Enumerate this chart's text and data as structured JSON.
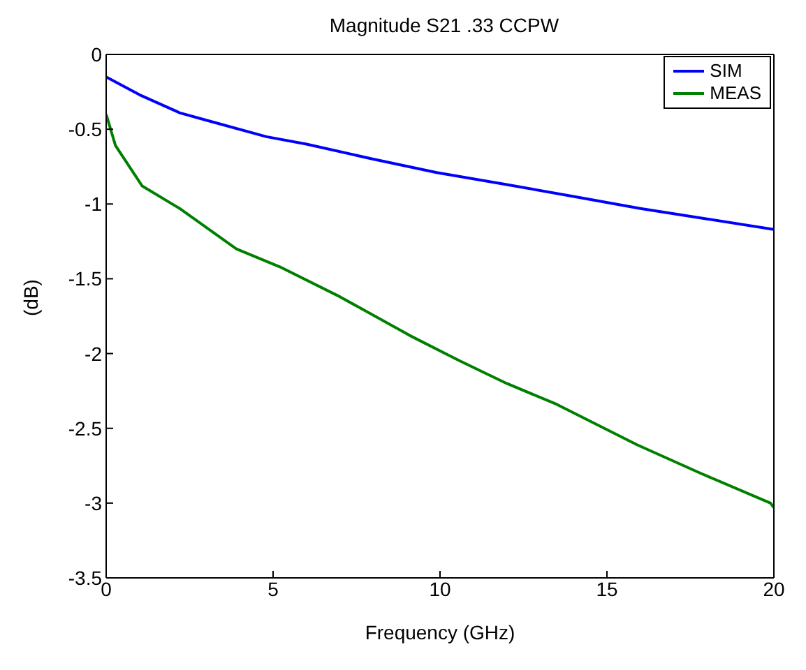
{
  "chart_data": {
    "type": "line",
    "title": "Magnitude S21 .33 CCPW",
    "xlabel": "Frequency (GHz)",
    "ylabel": "(dB)",
    "xlim": [
      0,
      20
    ],
    "xticks": [
      0,
      5,
      10,
      15,
      20
    ],
    "ylim": [
      -3.5,
      0
    ],
    "yticks": [
      -3.5,
      -3,
      -2.5,
      -2,
      -1.5,
      -1,
      -0.5,
      0
    ],
    "grid": false,
    "legend": "top right",
    "marker": "none",
    "line_style": "solid",
    "series": [
      {
        "name": "SIM",
        "color": "#0000ff",
        "x": [
          0,
          1,
          2.2,
          3,
          4.8,
          6,
          8,
          9.9,
          12,
          14,
          16,
          18,
          20
        ],
        "values": [
          -0.15,
          -0.27,
          -0.39,
          -0.44,
          -0.55,
          -0.6,
          -0.7,
          -0.79,
          -0.87,
          -0.95,
          -1.03,
          -1.1,
          -1.17
        ]
      },
      {
        "name": "MEAS",
        "color": "#008000",
        "x": [
          0,
          0.28,
          1.08,
          2.2,
          3.9,
          5.2,
          7,
          9.1,
          10.6,
          12,
          13.5,
          15.9,
          17.8,
          19.9,
          20
        ],
        "values": [
          -0.4,
          -0.61,
          -0.88,
          -1.03,
          -1.3,
          -1.42,
          -1.62,
          -1.88,
          -2.05,
          -2.2,
          -2.34,
          -2.61,
          -2.8,
          -3.0,
          -3.03
        ]
      }
    ]
  }
}
